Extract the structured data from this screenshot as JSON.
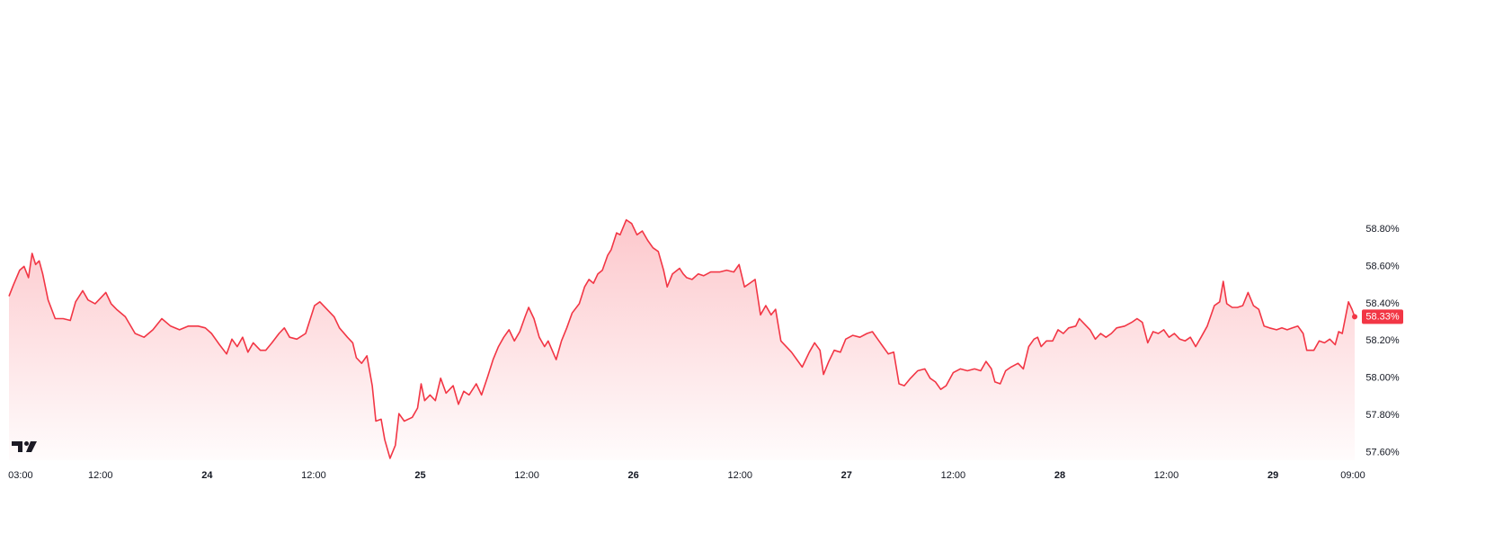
{
  "chart_data": {
    "type": "area",
    "series": [
      {
        "color": "#f23645",
        "x": [
          1.7,
          2.2,
          2.9,
          3.4,
          3.9,
          4.3,
          4.7,
          5.1,
          5.5,
          6.1,
          6.9,
          7.8,
          8.6,
          9.2,
          10.0,
          10.6,
          11.4,
          12.0,
          12.6,
          13.2,
          13.8,
          14.8,
          15.9,
          16.9,
          17.9,
          18.9,
          19.9,
          20.9,
          21.9,
          23.0,
          23.8,
          24.5,
          25.4,
          26.2,
          26.8,
          27.4,
          28.0,
          28.6,
          29.2,
          30.0,
          30.6,
          31.3,
          32.1,
          32.7,
          33.3,
          34.1,
          35.1,
          36.1,
          36.7,
          37.5,
          38.3,
          38.9,
          39.8,
          40.4,
          40.8,
          41.4,
          42.0,
          42.6,
          43.0,
          43.6,
          44.0,
          44.6,
          45.2,
          45.6,
          46.2,
          47.1,
          47.7,
          48.1,
          48.5,
          49.1,
          49.7,
          50.3,
          50.9,
          51.7,
          52.3,
          52.9,
          53.5,
          54.3,
          54.9,
          55.6,
          56.2,
          56.8,
          57.4,
          58.0,
          58.6,
          59.2,
          59.8,
          60.2,
          60.8,
          61.4,
          62.0,
          62.4,
          63.3,
          63.9,
          64.5,
          65.1,
          65.9,
          66.5,
          67.0,
          67.5,
          68.0,
          68.5,
          69.1,
          69.5,
          70.1,
          70.5,
          71.2,
          71.8,
          72.4,
          73.0,
          73.6,
          74.2,
          74.8,
          75.4,
          75.8,
          76.4,
          77.2,
          77.6,
          78.0,
          78.6,
          79.3,
          79.9,
          80.7,
          81.7,
          82.5,
          83.3,
          83.9,
          84.5,
          85.1,
          85.7,
          86.3,
          86.9,
          87.5,
          88.0,
          88.6,
          89.2,
          89.8,
          90.4,
          91.0,
          91.8,
          92.4,
          93.0,
          93.4,
          94.0,
          94.6,
          95.3,
          95.9,
          96.7,
          97.5,
          98.3,
          98.9,
          99.5,
          100.1,
          100.7,
          101.3,
          101.9,
          102.5,
          103.2,
          104.0,
          104.8,
          105.4,
          106.0,
          106.6,
          107.2,
          108.0,
          108.8,
          109.6,
          110.4,
          111.1,
          111.7,
          112.3,
          112.7,
          113.3,
          113.9,
          114.5,
          115.3,
          115.9,
          116.5,
          117.1,
          117.5,
          117.9,
          118.5,
          119.2,
          119.8,
          120.4,
          121.0,
          121.8,
          122.2,
          122.8,
          123.4,
          124.0,
          124.6,
          125.2,
          125.8,
          126.4,
          127.3,
          128.1,
          128.7,
          129.3,
          129.9,
          130.5,
          131.1,
          131.7,
          132.3,
          132.9,
          133.5,
          134.1,
          134.7,
          135.3,
          135.9,
          136.6,
          137.4,
          138.0,
          138.4,
          138.8,
          139.4,
          140.0,
          140.6,
          141.2,
          141.8,
          142.4,
          143.0,
          143.6,
          144.4,
          145.0,
          145.6,
          146.2,
          146.8,
          147.4,
          147.8,
          148.6,
          149.2,
          149.8,
          150.4,
          151.0,
          151.4,
          151.8,
          152.5,
          152.9,
          153.2
        ],
        "values": [
          58.44,
          58.5,
          58.58,
          58.6,
          58.54,
          58.67,
          58.61,
          58.63,
          58.56,
          58.42,
          58.32,
          58.32,
          58.31,
          58.41,
          58.47,
          58.42,
          58.4,
          58.43,
          58.46,
          58.4,
          58.37,
          58.33,
          58.24,
          58.22,
          58.26,
          58.32,
          58.28,
          58.26,
          58.28,
          58.28,
          58.27,
          58.24,
          58.18,
          58.13,
          58.21,
          58.17,
          58.22,
          58.14,
          58.19,
          58.15,
          58.15,
          58.19,
          58.24,
          58.27,
          58.22,
          58.21,
          58.24,
          58.39,
          58.41,
          58.37,
          58.33,
          58.27,
          58.22,
          58.19,
          58.11,
          58.08,
          58.12,
          57.96,
          57.77,
          57.78,
          57.67,
          57.57,
          57.64,
          57.81,
          57.77,
          57.79,
          57.84,
          57.97,
          57.88,
          57.91,
          57.88,
          58.0,
          57.92,
          57.96,
          57.86,
          57.93,
          57.91,
          57.97,
          57.91,
          58.01,
          58.1,
          58.17,
          58.22,
          58.26,
          58.2,
          58.25,
          58.33,
          58.38,
          58.32,
          58.22,
          58.17,
          58.2,
          58.1,
          58.2,
          58.27,
          58.35,
          58.4,
          58.49,
          58.53,
          58.51,
          58.56,
          58.58,
          58.66,
          58.69,
          58.78,
          58.77,
          58.85,
          58.83,
          58.77,
          58.79,
          58.74,
          58.7,
          58.68,
          58.58,
          58.49,
          58.56,
          58.59,
          58.56,
          58.54,
          58.53,
          58.56,
          58.55,
          58.57,
          58.57,
          58.58,
          58.57,
          58.61,
          58.49,
          58.51,
          58.53,
          58.34,
          58.39,
          58.34,
          58.37,
          58.2,
          58.17,
          58.14,
          58.1,
          58.06,
          58.14,
          58.19,
          58.15,
          58.02,
          58.09,
          58.15,
          58.14,
          58.21,
          58.23,
          58.22,
          58.24,
          58.25,
          58.21,
          58.17,
          58.13,
          58.14,
          57.97,
          57.96,
          58.0,
          58.04,
          58.05,
          58.0,
          57.98,
          57.94,
          57.96,
          58.03,
          58.05,
          58.04,
          58.05,
          58.04,
          58.09,
          58.05,
          57.98,
          57.97,
          58.04,
          58.06,
          58.08,
          58.05,
          58.17,
          58.21,
          58.22,
          58.17,
          58.2,
          58.2,
          58.26,
          58.24,
          58.27,
          58.28,
          58.32,
          58.29,
          58.26,
          58.21,
          58.24,
          58.22,
          58.24,
          58.27,
          58.28,
          58.3,
          58.32,
          58.3,
          58.19,
          58.25,
          58.24,
          58.26,
          58.22,
          58.24,
          58.21,
          58.2,
          58.22,
          58.17,
          58.22,
          58.28,
          58.39,
          58.41,
          58.52,
          58.4,
          58.38,
          58.38,
          58.39,
          58.46,
          58.39,
          58.37,
          58.28,
          58.27,
          58.26,
          58.27,
          58.26,
          58.27,
          58.28,
          58.24,
          58.15,
          58.15,
          58.2,
          58.19,
          58.21,
          58.18,
          58.25,
          58.24,
          58.41,
          58.37,
          58.33
        ],
        "last_value_label": "58.33%"
      }
    ],
    "xlim": [
      1.7,
      153.3
    ],
    "xticks": [
      {
        "value": 3,
        "label": "03:00"
      },
      {
        "value": 12,
        "label": "12:00"
      },
      24,
      {
        "value": 36,
        "label": "12:00"
      },
      {
        "value": 48,
        "label": "25"
      },
      {
        "value": 60,
        "label": "12:00"
      },
      {
        "value": 72,
        "label": "26"
      },
      {
        "value": 84,
        "label": "12:00"
      },
      {
        "value": 96,
        "label": "27"
      },
      {
        "value": 108,
        "label": "12:00"
      },
      {
        "value": 120,
        "label": "28"
      },
      {
        "value": 132,
        "label": "12:00"
      },
      {
        "value": 144,
        "label": "29"
      },
      {
        "value": 153,
        "label": "09:00"
      }
    ],
    "ylim": [
      57.56,
      60.03
    ],
    "yticks": [
      {
        "value": 57.6,
        "label": "57.60%"
      },
      {
        "value": 57.8,
        "label": "57.80%"
      },
      {
        "value": 58.0,
        "label": "58.00%"
      },
      {
        "value": 58.2,
        "label": "58.20%"
      },
      {
        "value": 58.4,
        "label": "58.40%"
      },
      {
        "value": 58.6,
        "label": "58.60%"
      },
      {
        "value": 58.8,
        "label": "58.80%"
      }
    ],
    "grid": false
  }
}
